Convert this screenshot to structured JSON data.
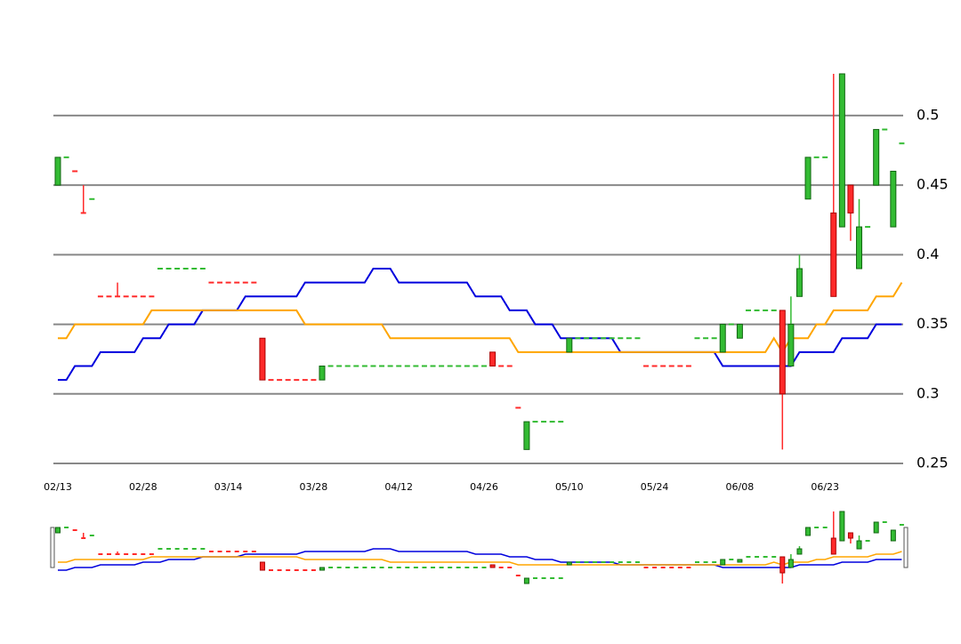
{
  "chart_data": {
    "type": "candlestick",
    "x": [
      "02/13",
      null,
      null,
      null,
      null,
      null,
      null,
      null,
      null,
      null,
      "02/28",
      null,
      null,
      null,
      null,
      null,
      null,
      null,
      null,
      null,
      "03/14",
      null,
      null,
      null,
      null,
      null,
      null,
      null,
      null,
      null,
      "03/28",
      null,
      null,
      null,
      null,
      null,
      null,
      null,
      null,
      null,
      "04/12",
      null,
      null,
      null,
      null,
      null,
      null,
      null,
      null,
      null,
      "04/26",
      null,
      null,
      null,
      null,
      null,
      null,
      null,
      null,
      null,
      "05/10",
      null,
      null,
      null,
      null,
      null,
      null,
      null,
      null,
      null,
      "05/24",
      null,
      null,
      null,
      null,
      null,
      null,
      null,
      null,
      null,
      "06/08",
      null,
      null,
      null,
      null,
      null,
      null,
      null,
      null,
      null,
      "06/23",
      null,
      null,
      null,
      null,
      null,
      null,
      null,
      null,
      null
    ],
    "open": [
      0.45,
      0.47,
      0.46,
      0.43,
      0.44,
      0.37,
      0.37,
      0.37,
      0.37,
      0.37,
      0.37,
      0.37,
      0.39,
      0.39,
      0.39,
      0.39,
      0.39,
      0.39,
      0.38,
      0.38,
      0.38,
      0.38,
      0.38,
      0.38,
      0.34,
      0.31,
      0.31,
      0.31,
      0.31,
      0.31,
      0.31,
      0.31,
      0.32,
      0.32,
      0.32,
      0.32,
      0.32,
      0.32,
      0.32,
      0.32,
      0.32,
      0.32,
      0.32,
      0.32,
      0.32,
      0.32,
      0.32,
      0.32,
      0.32,
      0.32,
      0.32,
      0.33,
      0.32,
      0.32,
      0.29,
      0.26,
      0.28,
      0.28,
      0.28,
      0.28,
      0.33,
      0.34,
      0.34,
      0.34,
      0.34,
      0.34,
      0.34,
      0.34,
      0.34,
      0.32,
      0.32,
      0.32,
      0.32,
      0.32,
      0.32,
      0.34,
      0.34,
      0.34,
      0.33,
      0.35,
      0.34,
      0.36,
      0.36,
      0.36,
      0.36,
      0.36,
      0.32,
      0.37,
      0.44,
      0.47,
      0.47,
      0.43,
      0.42,
      0.45,
      0.39,
      0.42,
      0.45,
      0.49,
      0.42,
      0.48
    ],
    "high": [
      0.47,
      0.47,
      0.46,
      0.45,
      0.44,
      0.37,
      0.37,
      0.38,
      0.37,
      0.37,
      0.37,
      0.37,
      0.39,
      0.39,
      0.39,
      0.39,
      0.39,
      0.39,
      0.38,
      0.38,
      0.38,
      0.38,
      0.38,
      0.38,
      0.34,
      0.31,
      0.31,
      0.31,
      0.31,
      0.31,
      0.31,
      0.32,
      0.32,
      0.32,
      0.32,
      0.32,
      0.32,
      0.32,
      0.32,
      0.32,
      0.32,
      0.32,
      0.32,
      0.32,
      0.32,
      0.32,
      0.32,
      0.32,
      0.32,
      0.32,
      0.32,
      0.33,
      0.32,
      0.32,
      0.29,
      0.28,
      0.28,
      0.28,
      0.28,
      0.28,
      0.34,
      0.34,
      0.34,
      0.34,
      0.34,
      0.34,
      0.34,
      0.34,
      0.34,
      0.32,
      0.32,
      0.32,
      0.32,
      0.32,
      0.32,
      0.34,
      0.34,
      0.34,
      0.35,
      0.35,
      0.35,
      0.36,
      0.36,
      0.36,
      0.36,
      0.36,
      0.37,
      0.4,
      0.47,
      0.47,
      0.47,
      0.53,
      0.53,
      0.45,
      0.44,
      0.42,
      0.49,
      0.49,
      0.46,
      0.48
    ],
    "low": [
      0.45,
      0.47,
      0.46,
      0.43,
      0.44,
      0.37,
      0.37,
      0.37,
      0.37,
      0.37,
      0.37,
      0.37,
      0.39,
      0.39,
      0.39,
      0.39,
      0.39,
      0.39,
      0.38,
      0.38,
      0.38,
      0.38,
      0.38,
      0.38,
      0.31,
      0.31,
      0.31,
      0.31,
      0.31,
      0.31,
      0.31,
      0.31,
      0.32,
      0.32,
      0.32,
      0.32,
      0.32,
      0.32,
      0.32,
      0.32,
      0.32,
      0.32,
      0.32,
      0.32,
      0.32,
      0.32,
      0.32,
      0.32,
      0.32,
      0.32,
      0.32,
      0.32,
      0.32,
      0.32,
      0.29,
      0.26,
      0.28,
      0.28,
      0.28,
      0.28,
      0.33,
      0.34,
      0.34,
      0.34,
      0.34,
      0.34,
      0.34,
      0.34,
      0.34,
      0.32,
      0.32,
      0.32,
      0.32,
      0.32,
      0.32,
      0.34,
      0.34,
      0.34,
      0.33,
      0.35,
      0.34,
      0.36,
      0.36,
      0.36,
      0.36,
      0.26,
      0.32,
      0.37,
      0.44,
      0.47,
      0.47,
      0.37,
      0.42,
      0.41,
      0.39,
      0.42,
      0.45,
      0.49,
      0.42,
      0.48
    ],
    "close": [
      0.47,
      0.47,
      0.46,
      0.43,
      0.44,
      0.37,
      0.37,
      0.37,
      0.37,
      0.37,
      0.37,
      0.37,
      0.39,
      0.39,
      0.39,
      0.39,
      0.39,
      0.39,
      0.38,
      0.38,
      0.38,
      0.38,
      0.38,
      0.38,
      0.31,
      0.31,
      0.31,
      0.31,
      0.31,
      0.31,
      0.31,
      0.32,
      0.32,
      0.32,
      0.32,
      0.32,
      0.32,
      0.32,
      0.32,
      0.32,
      0.32,
      0.32,
      0.32,
      0.32,
      0.32,
      0.32,
      0.32,
      0.32,
      0.32,
      0.32,
      0.32,
      0.32,
      0.32,
      0.32,
      0.29,
      0.28,
      0.28,
      0.28,
      0.28,
      0.28,
      0.34,
      0.34,
      0.34,
      0.34,
      0.34,
      0.34,
      0.34,
      0.34,
      0.34,
      0.32,
      0.32,
      0.32,
      0.32,
      0.32,
      0.32,
      0.34,
      0.34,
      0.34,
      0.35,
      0.35,
      0.35,
      0.36,
      0.36,
      0.36,
      0.36,
      0.3,
      0.35,
      0.39,
      0.47,
      0.47,
      0.47,
      0.37,
      0.53,
      0.43,
      0.42,
      0.42,
      0.49,
      0.49,
      0.46,
      0.48
    ],
    "up_color": "#33bb33",
    "down_color": "#ff2a2a",
    "series": [
      {
        "color": "#0000dd",
        "values": [
          0.31,
          0.31,
          0.32,
          0.32,
          0.32,
          0.33,
          0.33,
          0.33,
          0.33,
          0.33,
          0.34,
          0.34,
          0.34,
          0.35,
          0.35,
          0.35,
          0.35,
          0.36,
          0.36,
          0.36,
          0.36,
          0.36,
          0.37,
          0.37,
          0.37,
          0.37,
          0.37,
          0.37,
          0.37,
          0.38,
          0.38,
          0.38,
          0.38,
          0.38,
          0.38,
          0.38,
          0.38,
          0.39,
          0.39,
          0.39,
          0.38,
          0.38,
          0.38,
          0.38,
          0.38,
          0.38,
          0.38,
          0.38,
          0.38,
          0.37,
          0.37,
          0.37,
          0.37,
          0.36,
          0.36,
          0.36,
          0.35,
          0.35,
          0.35,
          0.34,
          0.34,
          0.34,
          0.34,
          0.34,
          0.34,
          0.34,
          0.33,
          0.33,
          0.33,
          0.33,
          0.33,
          0.33,
          0.33,
          0.33,
          0.33,
          0.33,
          0.33,
          0.33,
          0.32,
          0.32,
          0.32,
          0.32,
          0.32,
          0.32,
          0.32,
          0.32,
          0.32,
          0.33,
          0.33,
          0.33,
          0.33,
          0.33,
          0.34,
          0.34,
          0.34,
          0.34,
          0.35,
          0.35,
          0.35,
          0.35
        ]
      },
      {
        "color": "#ffa500",
        "values": [
          0.34,
          0.34,
          0.35,
          0.35,
          0.35,
          0.35,
          0.35,
          0.35,
          0.35,
          0.35,
          0.35,
          0.36,
          0.36,
          0.36,
          0.36,
          0.36,
          0.36,
          0.36,
          0.36,
          0.36,
          0.36,
          0.36,
          0.36,
          0.36,
          0.36,
          0.36,
          0.36,
          0.36,
          0.36,
          0.35,
          0.35,
          0.35,
          0.35,
          0.35,
          0.35,
          0.35,
          0.35,
          0.35,
          0.35,
          0.34,
          0.34,
          0.34,
          0.34,
          0.34,
          0.34,
          0.34,
          0.34,
          0.34,
          0.34,
          0.34,
          0.34,
          0.34,
          0.34,
          0.34,
          0.33,
          0.33,
          0.33,
          0.33,
          0.33,
          0.33,
          0.33,
          0.33,
          0.33,
          0.33,
          0.33,
          0.33,
          0.33,
          0.33,
          0.33,
          0.33,
          0.33,
          0.33,
          0.33,
          0.33,
          0.33,
          0.33,
          0.33,
          0.33,
          0.33,
          0.33,
          0.33,
          0.33,
          0.33,
          0.33,
          0.34,
          0.33,
          0.34,
          0.34,
          0.34,
          0.35,
          0.35,
          0.36,
          0.36,
          0.36,
          0.36,
          0.36,
          0.37,
          0.37,
          0.37,
          0.38
        ]
      }
    ],
    "ylim": [
      0.25,
      0.53
    ],
    "yticks": [
      0.25,
      0.3,
      0.35,
      0.4,
      0.45,
      0.5
    ],
    "grid": true
  }
}
